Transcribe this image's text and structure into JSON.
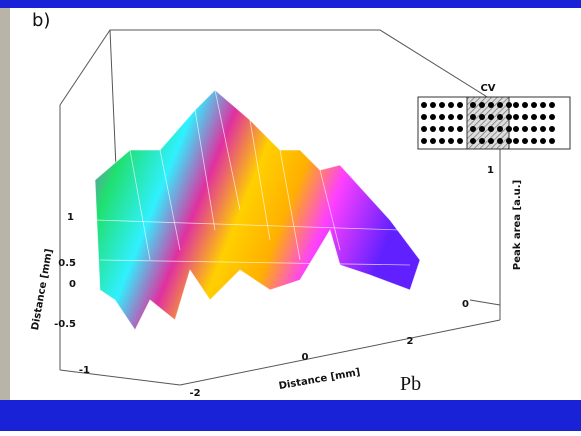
{
  "panel_label": "b)",
  "inset": {
    "label": "CV"
  },
  "z_axis": {
    "title": "Peak area [a.u.]",
    "ticks": [
      "1",
      "0"
    ]
  },
  "y_axis": {
    "title": "Distance [mm]",
    "ticks": [
      "1",
      "0.5",
      "0",
      "-0.5",
      "-1"
    ]
  },
  "x_axis": {
    "title": "Distance [mm]",
    "ticks": [
      "-2",
      "0",
      "2"
    ]
  },
  "caption": "Pb"
}
